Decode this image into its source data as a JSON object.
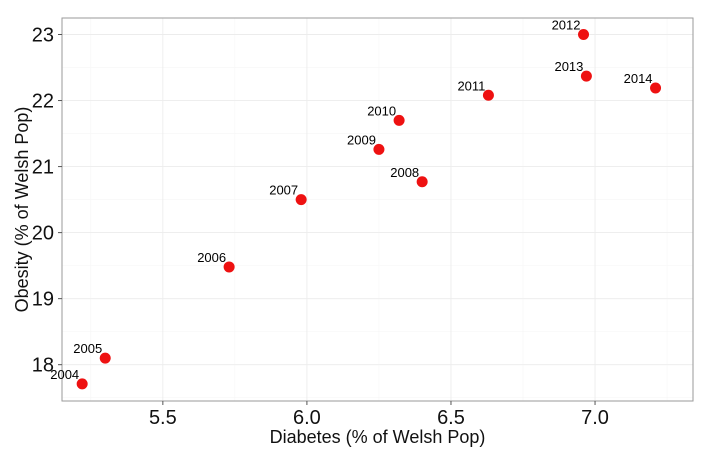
{
  "chart_data": {
    "type": "scatter",
    "title": "",
    "xlabel": "Diabetes (% of Welsh Pop)",
    "ylabel": "Obesity (% of Welsh Pop)",
    "xlim": [
      5.15,
      7.34
    ],
    "ylim": [
      17.45,
      23.25
    ],
    "x_ticks": [
      5.5,
      6.0,
      6.5,
      7.0
    ],
    "x_tick_labels": [
      "5.5",
      "6.0",
      "6.5",
      "7.0"
    ],
    "y_ticks": [
      18,
      19,
      20,
      21,
      22,
      23
    ],
    "y_tick_labels": [
      "18",
      "19",
      "20",
      "21",
      "22",
      "23"
    ],
    "grid": true,
    "legend": "none",
    "point_color": "#ee1111",
    "points": [
      {
        "label": "2004",
        "x": 5.22,
        "y": 17.71
      },
      {
        "label": "2005",
        "x": 5.3,
        "y": 18.1
      },
      {
        "label": "2006",
        "x": 5.73,
        "y": 19.48
      },
      {
        "label": "2007",
        "x": 5.98,
        "y": 20.5
      },
      {
        "label": "2008",
        "x": 6.4,
        "y": 20.77
      },
      {
        "label": "2009",
        "x": 6.25,
        "y": 21.26
      },
      {
        "label": "2010",
        "x": 6.32,
        "y": 21.7
      },
      {
        "label": "2011",
        "x": 6.63,
        "y": 22.08
      },
      {
        "label": "2012",
        "x": 6.96,
        "y": 23.0
      },
      {
        "label": "2013",
        "x": 6.97,
        "y": 22.37
      },
      {
        "label": "2014",
        "x": 7.21,
        "y": 22.19
      }
    ]
  }
}
